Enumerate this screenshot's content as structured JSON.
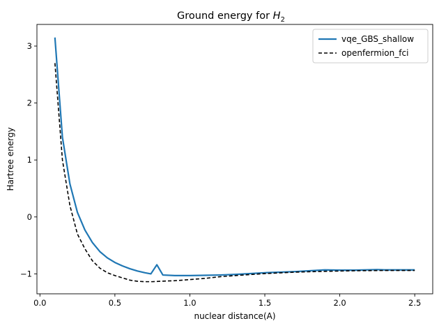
{
  "chart_data": {
    "type": "line",
    "title_main": "Ground energy for ",
    "title_var": "H",
    "title_sub": "2",
    "xlabel": "nuclear distance(A)",
    "ylabel": "Hartree energy",
    "xlim": [
      -0.02,
      2.62
    ],
    "ylim": [
      -1.35,
      3.38
    ],
    "xticks": [
      0.0,
      0.5,
      1.0,
      1.5,
      2.0,
      2.5
    ],
    "xtick_labels": [
      "0.0",
      "0.5",
      "1.0",
      "1.5",
      "2.0",
      "2.5"
    ],
    "yticks": [
      -1,
      0,
      1,
      2,
      3
    ],
    "ytick_labels": [
      "−1",
      "0",
      "1",
      "2",
      "3"
    ],
    "grid": false,
    "legend_position": "top-right",
    "series": [
      {
        "name": "vqe_GBS_shallow",
        "color": "#1f77b4",
        "dashed": false,
        "x": [
          0.1,
          0.15,
          0.2,
          0.25,
          0.3,
          0.35,
          0.4,
          0.45,
          0.5,
          0.55,
          0.6,
          0.65,
          0.7,
          0.74,
          0.78,
          0.82,
          0.9,
          1.0,
          1.1,
          1.2,
          1.3,
          1.5,
          1.7,
          1.9,
          2.0,
          2.1,
          2.25,
          2.3,
          2.5
        ],
        "y": [
          3.15,
          1.4,
          0.58,
          0.08,
          -0.23,
          -0.45,
          -0.61,
          -0.72,
          -0.8,
          -0.86,
          -0.91,
          -0.95,
          -0.98,
          -1.0,
          -0.84,
          -1.02,
          -1.03,
          -1.03,
          -1.025,
          -1.02,
          -1.01,
          -0.98,
          -0.96,
          -0.93,
          -0.935,
          -0.935,
          -0.925,
          -0.93,
          -0.93
        ]
      },
      {
        "name": "openfermion_fci",
        "color": "#000000",
        "dashed": true,
        "x": [
          0.1,
          0.15,
          0.2,
          0.25,
          0.3,
          0.35,
          0.4,
          0.45,
          0.5,
          0.55,
          0.6,
          0.65,
          0.7,
          0.75,
          0.8,
          0.9,
          1.0,
          1.1,
          1.2,
          1.3,
          1.5,
          1.7,
          1.9,
          2.1,
          2.3,
          2.5
        ],
        "y": [
          2.7,
          1.0,
          0.2,
          -0.3,
          -0.56,
          -0.77,
          -0.9,
          -0.98,
          -1.03,
          -1.07,
          -1.11,
          -1.13,
          -1.137,
          -1.137,
          -1.13,
          -1.12,
          -1.1,
          -1.08,
          -1.05,
          -1.03,
          -0.995,
          -0.97,
          -0.955,
          -0.945,
          -0.94,
          -0.94
        ]
      }
    ]
  }
}
